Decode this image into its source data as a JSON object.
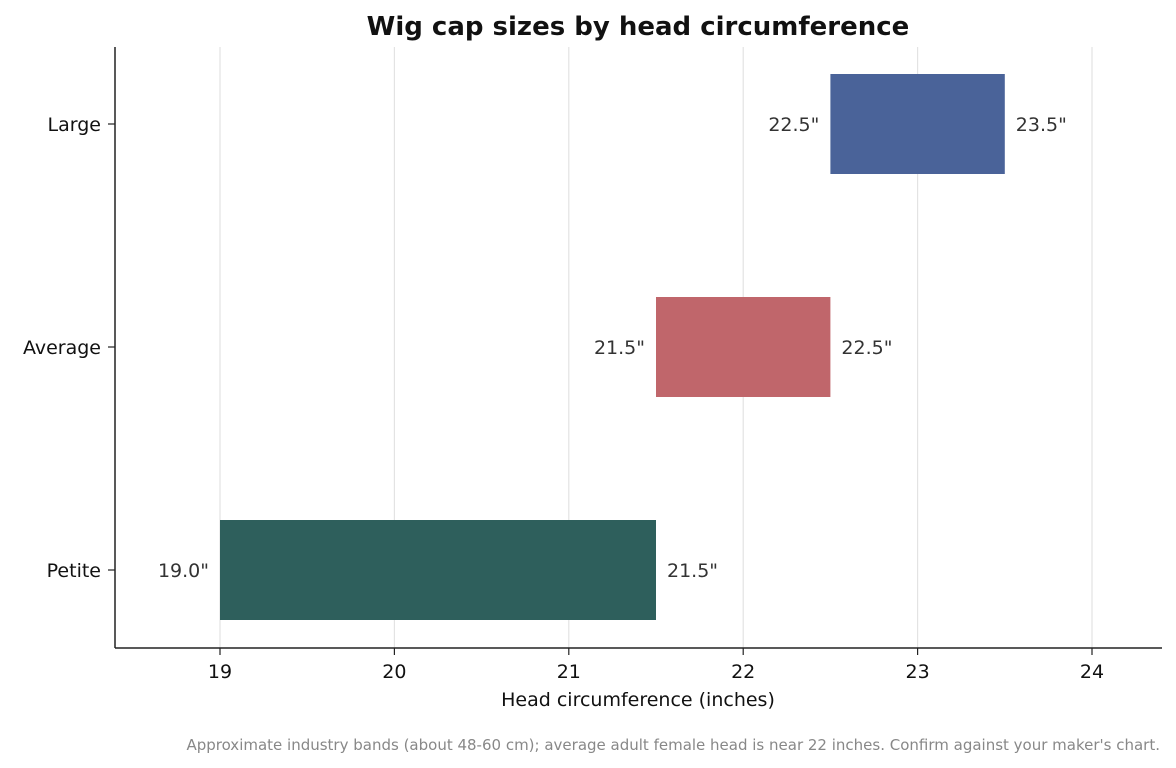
{
  "chart_data": {
    "type": "bar",
    "orientation": "horizontal-range",
    "title": "Wig cap sizes by head circumference",
    "xlabel": "Head circumference (inches)",
    "ylabel": "",
    "xlim": [
      18.4,
      24.4
    ],
    "xticks": [
      19,
      20,
      21,
      22,
      23,
      24
    ],
    "grid": "vertical",
    "categories": [
      "Large",
      "Average",
      "Petite"
    ],
    "bars": [
      {
        "category": "Large",
        "start": 22.5,
        "end": 23.5,
        "start_label": "22.5\"",
        "end_label": "23.5\"",
        "color": "#4a6399"
      },
      {
        "category": "Average",
        "start": 21.5,
        "end": 22.5,
        "start_label": "21.5\"",
        "end_label": "22.5\"",
        "color": "#c0666b"
      },
      {
        "category": "Petite",
        "start": 19.0,
        "end": 21.5,
        "start_label": "19.0\"",
        "end_label": "21.5\"",
        "color": "#2e5f5c"
      }
    ],
    "footnote": "Approximate industry bands (about 48-60 cm); average adult female head is near 22 inches. Confirm against your maker's chart."
  }
}
